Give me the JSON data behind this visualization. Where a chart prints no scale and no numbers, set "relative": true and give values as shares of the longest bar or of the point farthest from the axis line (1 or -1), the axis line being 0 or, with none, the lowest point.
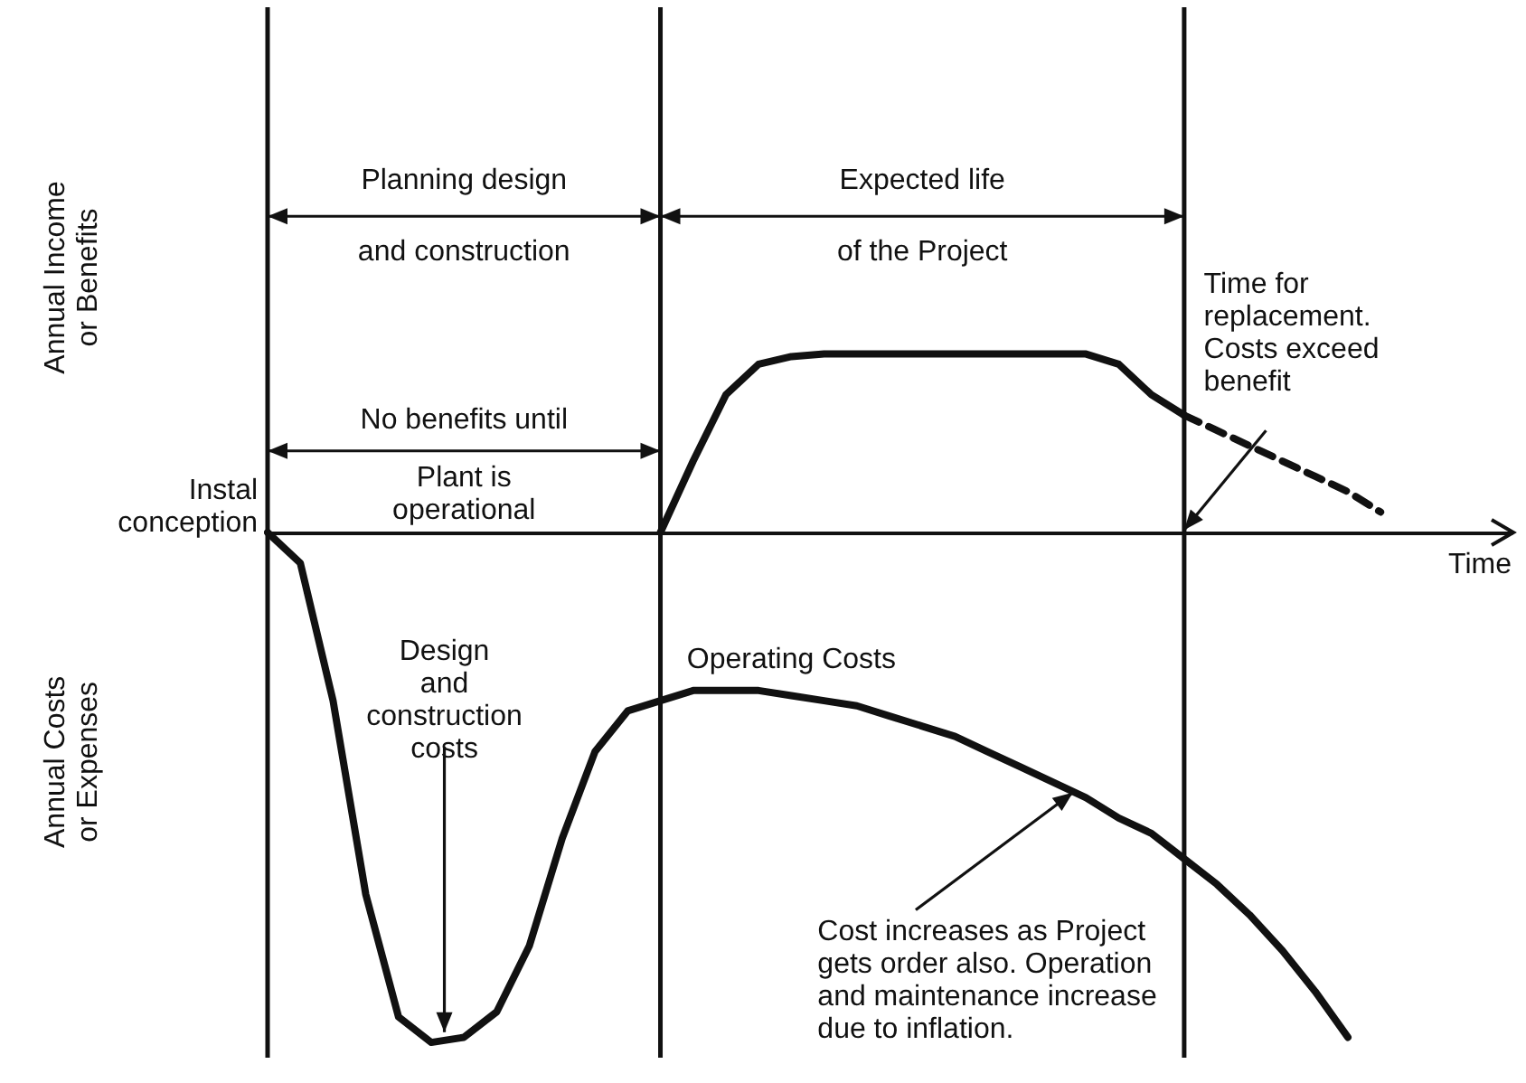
{
  "chart_data": {
    "type": "line",
    "relative": true,
    "xlabel": "Time",
    "categories": [
      null,
      null,
      null,
      null,
      null,
      null,
      null,
      null,
      null,
      null,
      null,
      null,
      null,
      null,
      null,
      null,
      null,
      null,
      null,
      null,
      null,
      null,
      null,
      null,
      null,
      null,
      null,
      null,
      null,
      null,
      null,
      null,
      null,
      null,
      null,
      null,
      null,
      null,
      null
    ],
    "grid": false,
    "marker": "none",
    "series": [
      {
        "color": "#111111",
        "line_style": "solid",
        "values": [
          null,
          null,
          null,
          null,
          null,
          null,
          null,
          null,
          null,
          null,
          null,
          null,
          0,
          0.14,
          0.27,
          0.33,
          0.345,
          0.35,
          0.35,
          0.35,
          0.35,
          0.35,
          0.35,
          0.35,
          0.35,
          0.35,
          0.33,
          0.27,
          0.23,
          null,
          null,
          null,
          null,
          null,
          null,
          null,
          null,
          null,
          null
        ]
      },
      {
        "color": "#111111",
        "line_style": "dashed",
        "values": [
          null,
          null,
          null,
          null,
          null,
          null,
          null,
          null,
          null,
          null,
          null,
          null,
          null,
          null,
          null,
          null,
          null,
          null,
          null,
          null,
          null,
          null,
          null,
          null,
          null,
          null,
          null,
          null,
          0.23,
          0.2,
          0.17,
          0.14,
          0.11,
          0.08,
          0.04,
          null,
          null,
          null,
          null
        ]
      },
      {
        "color": "#111111",
        "line_style": "solid",
        "values": [
          0,
          -0.06,
          -0.33,
          -0.71,
          -0.95,
          -1,
          -0.99,
          -0.94,
          -0.81,
          -0.6,
          -0.43,
          -0.35,
          -0.33,
          -0.31,
          -0.31,
          -0.31,
          -0.32,
          -0.33,
          -0.34,
          -0.36,
          -0.38,
          -0.4,
          -0.43,
          -0.46,
          -0.49,
          -0.52,
          -0.56,
          -0.59,
          -0.64,
          -0.69,
          -0.75,
          -0.82,
          -0.9,
          -0.99,
          null,
          null,
          null,
          null,
          null
        ]
      }
    ],
    "annotations": [
      "Planning design",
      "and construction",
      "Expected life",
      "of the Project",
      "No benefits until",
      "Plant is\noperational",
      "Time for\nreplacement.\nCosts exceed\nbenefit",
      "Design\nand\nconstruction\ncosts",
      "Operating Costs",
      "Cost increases as Project\ngets order also. Operation\nand maintenance increase\ndue to inflation.",
      "Instal\nconception",
      "Annual Costs\nor Expenses",
      "Annual Income\nor Benefits"
    ]
  }
}
